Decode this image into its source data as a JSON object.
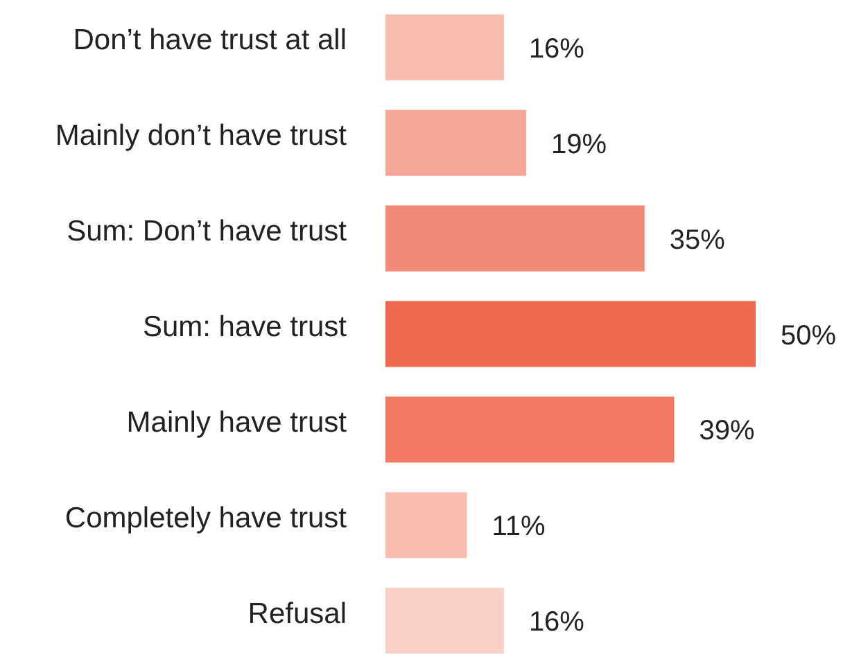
{
  "chart_data": {
    "type": "bar",
    "orientation": "horizontal",
    "categories": [
      "Don’t have trust at all",
      "Mainly don’t have trust",
      "Sum: Don’t have trust",
      "Sum: have trust",
      "Mainly have trust",
      "Completely have trust",
      "Refusal"
    ],
    "values": [
      16,
      19,
      35,
      50,
      39,
      11,
      16
    ],
    "colors": [
      "#f8bcb0",
      "#f5a797",
      "#f08a76",
      "#ef6850",
      "#f07a63",
      "#f8bcb0",
      "#f8d0c8"
    ],
    "value_labels": [
      "16%",
      "19%",
      "35%",
      "50%",
      "39%",
      "11%",
      "16%"
    ]
  }
}
